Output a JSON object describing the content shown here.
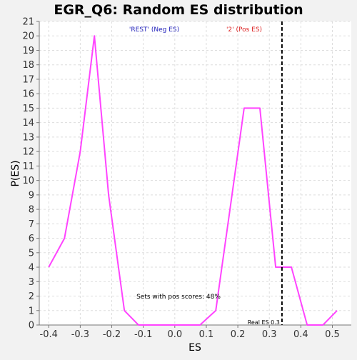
{
  "chart_data": {
    "type": "line",
    "title": "EGR_Q6: Random ES distribution",
    "xlabel": "ES",
    "ylabel": "P(ES)",
    "xlim": [
      -0.43,
      0.56
    ],
    "ylim": [
      0,
      21
    ],
    "x_ticks": [
      -0.4,
      -0.3,
      -0.2,
      -0.1,
      0.0,
      0.1,
      0.2,
      0.3,
      0.4,
      0.5
    ],
    "x_tick_labels": [
      "-0.4",
      "-0.3",
      "-0.2",
      "-0.1",
      "0.0",
      "0.1",
      "0.2",
      "0.3",
      "0.4",
      "0.5"
    ],
    "y_ticks": [
      0,
      1,
      2,
      3,
      4,
      5,
      6,
      7,
      8,
      9,
      10,
      11,
      12,
      13,
      14,
      15,
      16,
      17,
      18,
      19,
      20,
      21
    ],
    "grid": true,
    "series": [
      {
        "color": "#ff44ff",
        "x": [
          -0.4,
          -0.35,
          -0.3,
          -0.255,
          -0.21,
          -0.16,
          -0.115,
          -0.07,
          -0.02,
          0.03,
          0.08,
          0.13,
          0.175,
          0.22,
          0.27,
          0.32,
          0.37,
          0.42,
          0.47,
          0.515
        ],
        "y": [
          4,
          6,
          12,
          20,
          9,
          1,
          0,
          0,
          0,
          0,
          0,
          1,
          8,
          15,
          15,
          4,
          4,
          0,
          0,
          1
        ]
      }
    ],
    "vline": {
      "x": 0.34,
      "style": "dashed",
      "color": "#000000",
      "label": "Real ES 0.3"
    },
    "neg_label": {
      "text": "'REST' (Neg ES)",
      "color": "#2222bb"
    },
    "pos_label": {
      "text": "'2' (Pos ES)",
      "color": "#dd2222"
    },
    "annotation": "Sets with pos scores: 48%"
  }
}
